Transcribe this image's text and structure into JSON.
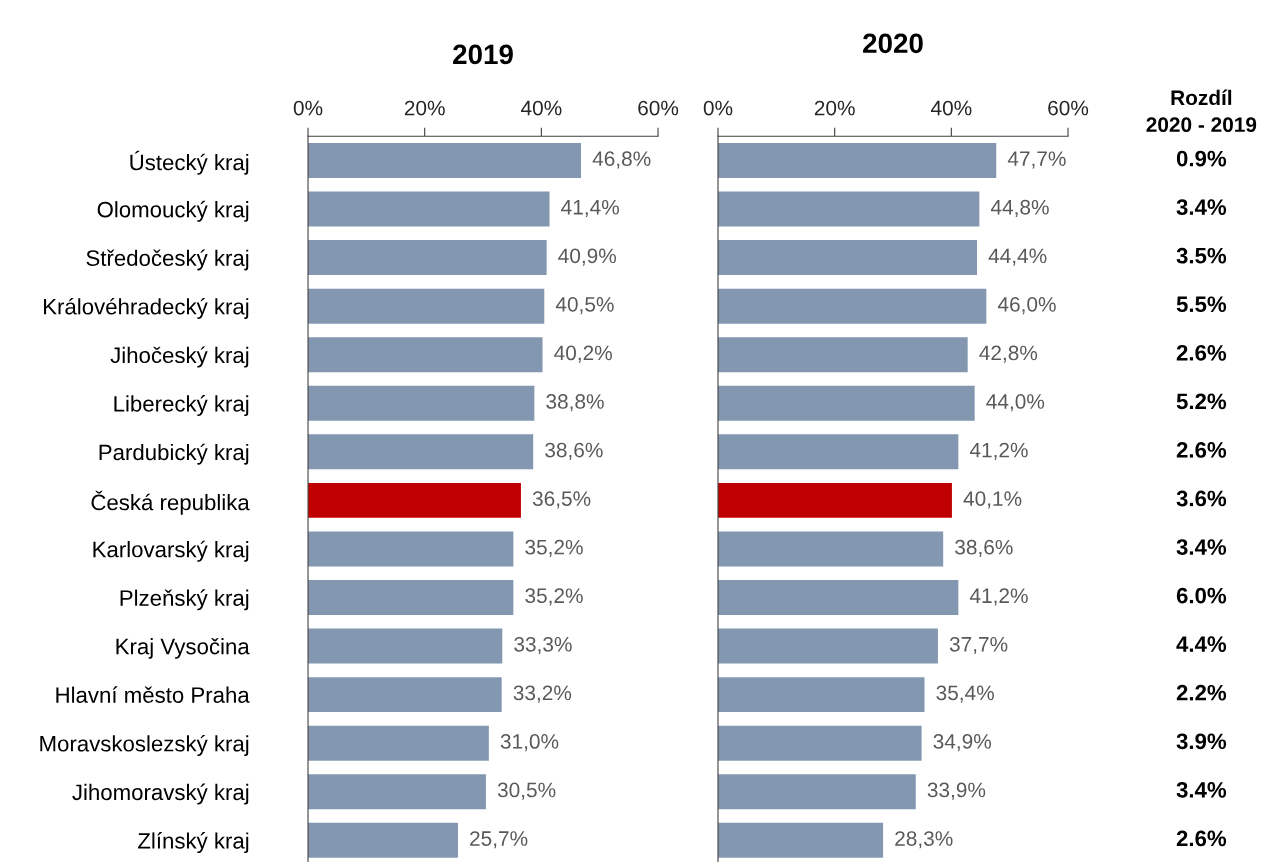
{
  "chart_data": [
    {
      "type": "bar",
      "orientation": "horizontal",
      "title": "2019",
      "categories": [
        "Ústecký kraj",
        "Olomoucký kraj",
        "Středočeský kraj",
        "Královéhradecký kraj",
        "Jihočeský kraj",
        "Liberecký kraj",
        "Pardubický kraj",
        "Česká republika",
        "Karlovarský kraj",
        "Plzeňský kraj",
        "Kraj Vysočina",
        "Hlavní město Praha",
        "Moravskoslezský kraj",
        "Jihomoravský kraj",
        "Zlínský kraj"
      ],
      "values": [
        46.8,
        41.4,
        40.9,
        40.5,
        40.2,
        38.8,
        38.6,
        36.5,
        35.2,
        35.2,
        33.3,
        33.2,
        31.0,
        30.5,
        25.7
      ],
      "value_labels": [
        "46,8%",
        "41,4%",
        "40,9%",
        "40,5%",
        "40,2%",
        "38,8%",
        "38,6%",
        "36,5%",
        "35,2%",
        "35,2%",
        "33,3%",
        "33,2%",
        "31,0%",
        "30,5%",
        "25,7%"
      ],
      "colors": [
        "#8497b0",
        "#8497b0",
        "#8497b0",
        "#8497b0",
        "#8497b0",
        "#8497b0",
        "#8497b0",
        "#c00000",
        "#8497b0",
        "#8497b0",
        "#8497b0",
        "#8497b0",
        "#8497b0",
        "#8497b0",
        "#8497b0"
      ],
      "xlim": [
        0,
        60
      ],
      "xticks": [
        {
          "value": 0,
          "label": "0%"
        },
        {
          "value": 20,
          "label": "20%"
        },
        {
          "value": 40,
          "label": "40%"
        },
        {
          "value": 60,
          "label": "60%"
        }
      ],
      "grid": false,
      "legend": false
    },
    {
      "type": "bar",
      "orientation": "horizontal",
      "title": "2020",
      "categories": [
        null,
        null,
        null,
        null,
        null,
        null,
        null,
        null,
        null,
        null,
        null,
        null,
        null,
        null,
        null
      ],
      "values": [
        47.7,
        44.8,
        44.4,
        46.0,
        42.8,
        44.0,
        41.2,
        40.1,
        38.6,
        41.2,
        37.7,
        35.4,
        34.9,
        33.9,
        28.3
      ],
      "value_labels": [
        "47,7%",
        "44,8%",
        "44,4%",
        "46,0%",
        "42,8%",
        "44,0%",
        "41,2%",
        "40,1%",
        "38,6%",
        "41,2%",
        "37,7%",
        "35,4%",
        "34,9%",
        "33,9%",
        "28,3%"
      ],
      "colors": [
        "#8497b0",
        "#8497b0",
        "#8497b0",
        "#8497b0",
        "#8497b0",
        "#8497b0",
        "#8497b0",
        "#c00000",
        "#8497b0",
        "#8497b0",
        "#8497b0",
        "#8497b0",
        "#8497b0",
        "#8497b0",
        "#8497b0"
      ],
      "xlim": [
        0,
        60
      ],
      "xticks": [
        {
          "value": 0,
          "label": "0%"
        },
        {
          "value": 20,
          "label": "20%"
        },
        {
          "value": 40,
          "label": "40%"
        },
        {
          "value": 60,
          "label": "60%"
        }
      ],
      "tick_labels": "x",
      "grid": false,
      "legend": false
    },
    {
      "type": "other",
      "title": "Rozdíl\n2020 - 2019",
      "annotations": [
        "0.9%",
        "3.4%",
        "3.5%",
        "5.5%",
        "2.6%",
        "5.2%",
        "2.6%",
        "3.6%",
        "3.4%",
        "6.0%",
        "4.4%",
        "2.2%",
        "3.9%",
        "3.4%",
        "2.6%"
      ]
    }
  ]
}
